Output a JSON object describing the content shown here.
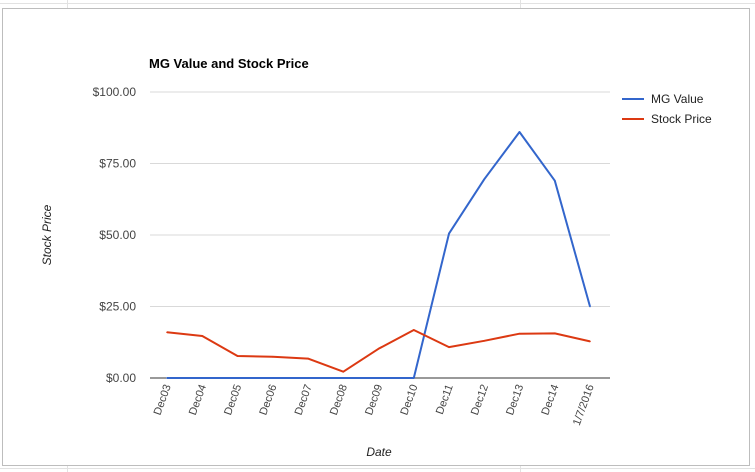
{
  "chart_data": {
    "type": "line",
    "title": "MG Value and Stock Price",
    "xlabel": "Date",
    "ylabel": "Stock Price",
    "categories": [
      "Dec03",
      "Dec04",
      "Dec05",
      "Dec06",
      "Dec07",
      "Dec08",
      "Dec09",
      "Dec10",
      "Dec11",
      "Dec12",
      "Dec13",
      "Dec14",
      "1/7/2016"
    ],
    "y_ticks": [
      "$0.00",
      "$25.00",
      "$50.00",
      "$75.00",
      "$100.00"
    ],
    "ylim": [
      0,
      100
    ],
    "grid": true,
    "legend_position": "right",
    "series": [
      {
        "name": "MG Value",
        "color": "#3366cc",
        "values": [
          0,
          0,
          0,
          0,
          0,
          0,
          0,
          0,
          50.5,
          69.5,
          86,
          69,
          25
        ]
      },
      {
        "name": "Stock Price",
        "color": "#dc3912",
        "values": [
          16,
          14.7,
          7.7,
          7.4,
          6.8,
          2.2,
          10.2,
          16.8,
          10.8,
          13,
          15.5,
          15.6,
          12.8
        ]
      }
    ]
  }
}
